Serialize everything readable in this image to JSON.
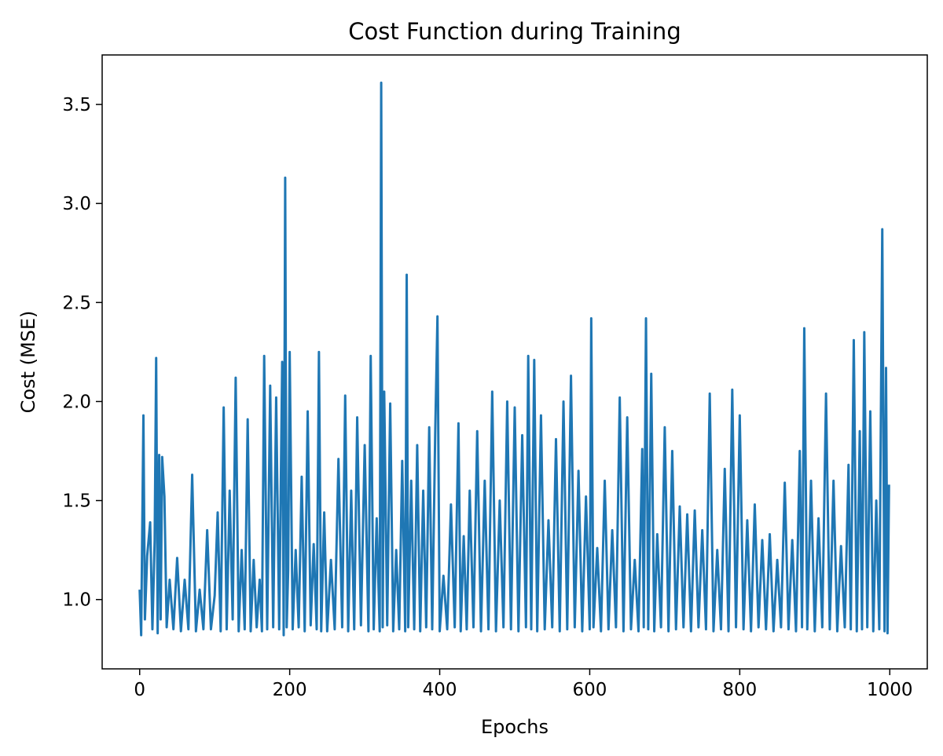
{
  "chart_data": {
    "type": "line",
    "title": "Cost Function during Training",
    "xlabel": "Epochs",
    "ylabel": "Cost (MSE)",
    "xlim": [
      -50,
      1050
    ],
    "ylim": [
      0.65,
      3.75
    ],
    "xticks": [
      0,
      200,
      400,
      600,
      800,
      1000
    ],
    "yticks": [
      1.0,
      1.5,
      2.0,
      2.5,
      3.0,
      3.5
    ],
    "xtick_labels": [
      "0",
      "200",
      "400",
      "600",
      "800",
      "1000"
    ],
    "ytick_labels": [
      "1.0",
      "1.5",
      "2.0",
      "2.5",
      "3.0",
      "3.5"
    ],
    "grid": false,
    "legend": "none",
    "line_color": "#1f77b4",
    "series": [
      {
        "x": [
          0,
          2,
          5,
          7,
          10,
          14,
          17,
          20,
          22,
          24,
          26,
          28,
          30,
          33,
          36,
          40,
          45,
          50,
          55,
          60,
          65,
          70,
          75,
          80,
          85,
          90,
          95,
          100,
          104,
          108,
          112,
          116,
          120,
          124,
          128,
          132,
          136,
          140,
          144,
          148,
          152,
          156,
          160,
          163,
          166,
          170,
          174,
          178,
          182,
          186,
          190,
          192,
          194,
          196,
          198,
          200,
          204,
          208,
          212,
          216,
          220,
          224,
          228,
          232,
          236,
          239,
          242,
          246,
          250,
          255,
          260,
          265,
          270,
          274,
          278,
          282,
          286,
          290,
          295,
          300,
          305,
          308,
          312,
          316,
          320,
          322,
          324,
          326,
          330,
          334,
          338,
          342,
          346,
          350,
          354,
          356,
          358,
          362,
          366,
          370,
          374,
          378,
          382,
          386,
          390,
          394,
          397,
          400,
          405,
          410,
          415,
          420,
          425,
          428,
          432,
          436,
          440,
          445,
          450,
          455,
          460,
          465,
          470,
          475,
          480,
          485,
          490,
          495,
          500,
          505,
          510,
          515,
          518,
          522,
          526,
          530,
          535,
          540,
          545,
          550,
          555,
          560,
          565,
          570,
          575,
          580,
          585,
          590,
          595,
          600,
          602,
          605,
          610,
          615,
          620,
          625,
          630,
          635,
          640,
          645,
          650,
          655,
          660,
          665,
          670,
          672,
          675,
          678,
          682,
          686,
          690,
          695,
          700,
          705,
          710,
          715,
          720,
          725,
          730,
          735,
          740,
          745,
          750,
          755,
          760,
          765,
          770,
          775,
          780,
          785,
          790,
          795,
          800,
          805,
          810,
          815,
          820,
          825,
          830,
          835,
          840,
          845,
          850,
          855,
          860,
          865,
          870,
          875,
          880,
          883,
          886,
          890,
          895,
          900,
          905,
          910,
          915,
          920,
          925,
          930,
          935,
          940,
          945,
          948,
          952,
          956,
          960,
          963,
          966,
          970,
          974,
          978,
          982,
          986,
          990,
          993,
          995,
          997,
          999
        ],
        "y": [
          1.05,
          0.82,
          1.93,
          0.9,
          1.22,
          1.39,
          0.85,
          1.3,
          2.22,
          0.83,
          1.73,
          0.9,
          1.72,
          1.52,
          0.86,
          1.1,
          0.85,
          1.21,
          0.84,
          1.1,
          0.85,
          1.63,
          0.84,
          1.05,
          0.85,
          1.35,
          0.85,
          1.02,
          1.44,
          0.84,
          1.97,
          0.85,
          1.55,
          0.9,
          2.12,
          0.84,
          1.25,
          0.85,
          1.91,
          0.84,
          1.2,
          0.86,
          1.1,
          0.84,
          2.23,
          0.85,
          2.08,
          0.86,
          2.02,
          0.85,
          2.2,
          0.82,
          3.13,
          0.86,
          1.15,
          2.25,
          0.85,
          1.25,
          0.86,
          1.62,
          0.84,
          1.95,
          0.87,
          1.28,
          0.85,
          2.25,
          0.84,
          1.44,
          0.84,
          1.2,
          0.85,
          1.71,
          0.86,
          2.03,
          0.84,
          1.55,
          0.85,
          1.92,
          0.87,
          1.78,
          0.84,
          2.23,
          0.85,
          1.41,
          0.84,
          3.61,
          0.86,
          2.05,
          0.87,
          1.99,
          0.84,
          1.25,
          0.85,
          1.7,
          0.84,
          2.64,
          0.86,
          1.6,
          0.85,
          1.78,
          0.84,
          1.55,
          0.86,
          1.87,
          0.85,
          1.84,
          2.43,
          0.84,
          1.12,
          0.85,
          1.48,
          0.86,
          1.89,
          0.84,
          1.32,
          0.85,
          1.55,
          0.86,
          1.85,
          0.84,
          1.6,
          0.85,
          2.05,
          0.84,
          1.5,
          0.86,
          2.0,
          0.85,
          1.97,
          0.84,
          1.83,
          0.86,
          2.23,
          0.85,
          2.21,
          0.84,
          1.93,
          0.85,
          1.4,
          0.86,
          1.81,
          0.84,
          2.0,
          0.85,
          2.13,
          0.86,
          1.65,
          0.84,
          1.52,
          0.85,
          2.42,
          0.86,
          1.26,
          0.84,
          1.6,
          0.85,
          1.35,
          0.86,
          2.02,
          0.84,
          1.92,
          0.85,
          1.2,
          0.84,
          1.76,
          0.86,
          2.42,
          0.85,
          2.14,
          0.84,
          1.33,
          0.86,
          1.87,
          0.84,
          1.75,
          0.85,
          1.47,
          0.86,
          1.43,
          0.84,
          1.45,
          0.86,
          1.35,
          0.85,
          2.04,
          0.84,
          1.25,
          0.85,
          1.66,
          0.84,
          2.06,
          0.86,
          1.93,
          0.85,
          1.4,
          0.84,
          1.48,
          0.86,
          1.3,
          0.85,
          1.33,
          0.84,
          1.2,
          0.86,
          1.59,
          0.85,
          1.3,
          0.84,
          1.75,
          0.86,
          2.37,
          0.85,
          1.6,
          0.84,
          1.41,
          0.86,
          2.04,
          0.85,
          1.6,
          0.84,
          1.27,
          0.86,
          1.68,
          0.85,
          2.31,
          0.84,
          1.85,
          0.85,
          2.35,
          0.86,
          1.95,
          0.84,
          1.5,
          0.85,
          2.87,
          0.84,
          2.17,
          0.83,
          1.58
        ]
      }
    ]
  }
}
